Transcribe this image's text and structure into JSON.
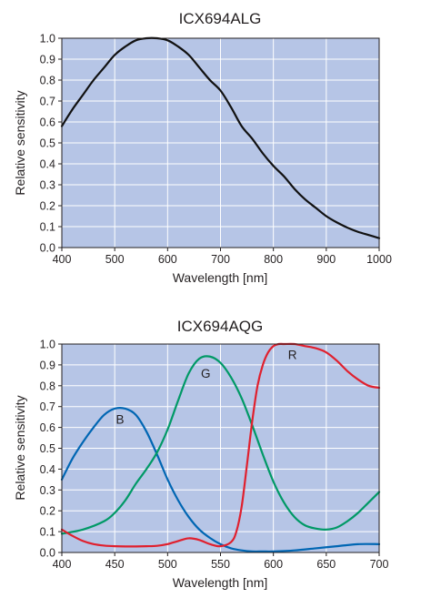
{
  "chart_data": [
    {
      "type": "line",
      "title": "ICX694ALG",
      "xlabel": "Wavelength [nm]",
      "ylabel": "Relative sensitivity",
      "xlim": [
        400,
        1000
      ],
      "ylim": [
        0,
        1.0
      ],
      "xticks": [
        400,
        500,
        600,
        700,
        800,
        900,
        1000
      ],
      "yticks": [
        0.0,
        0.1,
        0.2,
        0.3,
        0.4,
        0.5,
        0.6,
        0.7,
        0.8,
        0.9,
        1.0
      ],
      "grid": true,
      "series": [
        {
          "color": "#111111",
          "x": [
            400,
            420,
            440,
            460,
            480,
            500,
            520,
            540,
            560,
            580,
            600,
            620,
            640,
            660,
            680,
            700,
            720,
            740,
            760,
            780,
            800,
            820,
            840,
            860,
            880,
            900,
            920,
            940,
            960,
            980,
            1000
          ],
          "y": [
            0.58,
            0.66,
            0.73,
            0.8,
            0.86,
            0.92,
            0.96,
            0.99,
            1.0,
            1.0,
            0.99,
            0.96,
            0.92,
            0.86,
            0.8,
            0.75,
            0.67,
            0.58,
            0.52,
            0.45,
            0.39,
            0.34,
            0.28,
            0.23,
            0.19,
            0.15,
            0.12,
            0.095,
            0.075,
            0.06,
            0.045
          ]
        }
      ]
    },
    {
      "type": "line",
      "title": "ICX694AQG",
      "xlabel": "Wavelength [nm]",
      "ylabel": "Relative sensitivity",
      "xlim": [
        400,
        700
      ],
      "ylim": [
        0,
        1.0
      ],
      "xticks": [
        400,
        450,
        500,
        550,
        600,
        650,
        700
      ],
      "yticks": [
        0.0,
        0.1,
        0.2,
        0.3,
        0.4,
        0.5,
        0.6,
        0.7,
        0.8,
        0.9,
        1.0
      ],
      "grid": true,
      "series": [
        {
          "name": "B",
          "color": "#0066b3",
          "label_at": [
            455,
            0.64
          ],
          "x": [
            400,
            410,
            420,
            430,
            440,
            450,
            460,
            470,
            480,
            490,
            500,
            510,
            520,
            530,
            540,
            550,
            560,
            570,
            580,
            590,
            600,
            620,
            640,
            660,
            680,
            700
          ],
          "y": [
            0.35,
            0.45,
            0.53,
            0.6,
            0.66,
            0.69,
            0.69,
            0.66,
            0.58,
            0.47,
            0.35,
            0.25,
            0.17,
            0.11,
            0.07,
            0.04,
            0.02,
            0.01,
            0.005,
            0.005,
            0.005,
            0.01,
            0.02,
            0.03,
            0.04,
            0.04
          ]
        },
        {
          "name": "G",
          "color": "#009966",
          "label_at": [
            536,
            0.86
          ],
          "x": [
            400,
            420,
            440,
            450,
            460,
            470,
            480,
            490,
            500,
            510,
            520,
            530,
            540,
            550,
            560,
            570,
            580,
            590,
            600,
            610,
            620,
            630,
            640,
            650,
            660,
            670,
            680,
            690,
            700
          ],
          "y": [
            0.09,
            0.11,
            0.15,
            0.19,
            0.25,
            0.33,
            0.4,
            0.48,
            0.59,
            0.73,
            0.86,
            0.93,
            0.94,
            0.91,
            0.84,
            0.74,
            0.61,
            0.47,
            0.34,
            0.24,
            0.17,
            0.13,
            0.115,
            0.11,
            0.12,
            0.15,
            0.19,
            0.24,
            0.29
          ]
        },
        {
          "name": "R",
          "color": "#e0202e",
          "label_at": [
            618,
            0.95
          ],
          "x": [
            400,
            410,
            420,
            430,
            440,
            450,
            460,
            470,
            480,
            490,
            500,
            510,
            520,
            530,
            540,
            550,
            560,
            565,
            570,
            575,
            580,
            585,
            590,
            595,
            600,
            605,
            610,
            620,
            630,
            640,
            650,
            660,
            670,
            680,
            690,
            700
          ],
          "y": [
            0.11,
            0.08,
            0.055,
            0.04,
            0.033,
            0.03,
            0.029,
            0.029,
            0.03,
            0.032,
            0.04,
            0.055,
            0.068,
            0.06,
            0.04,
            0.03,
            0.05,
            0.1,
            0.22,
            0.42,
            0.63,
            0.8,
            0.9,
            0.96,
            0.99,
            1.0,
            1.0,
            1.0,
            0.99,
            0.98,
            0.96,
            0.92,
            0.87,
            0.83,
            0.8,
            0.79
          ]
        }
      ]
    }
  ]
}
